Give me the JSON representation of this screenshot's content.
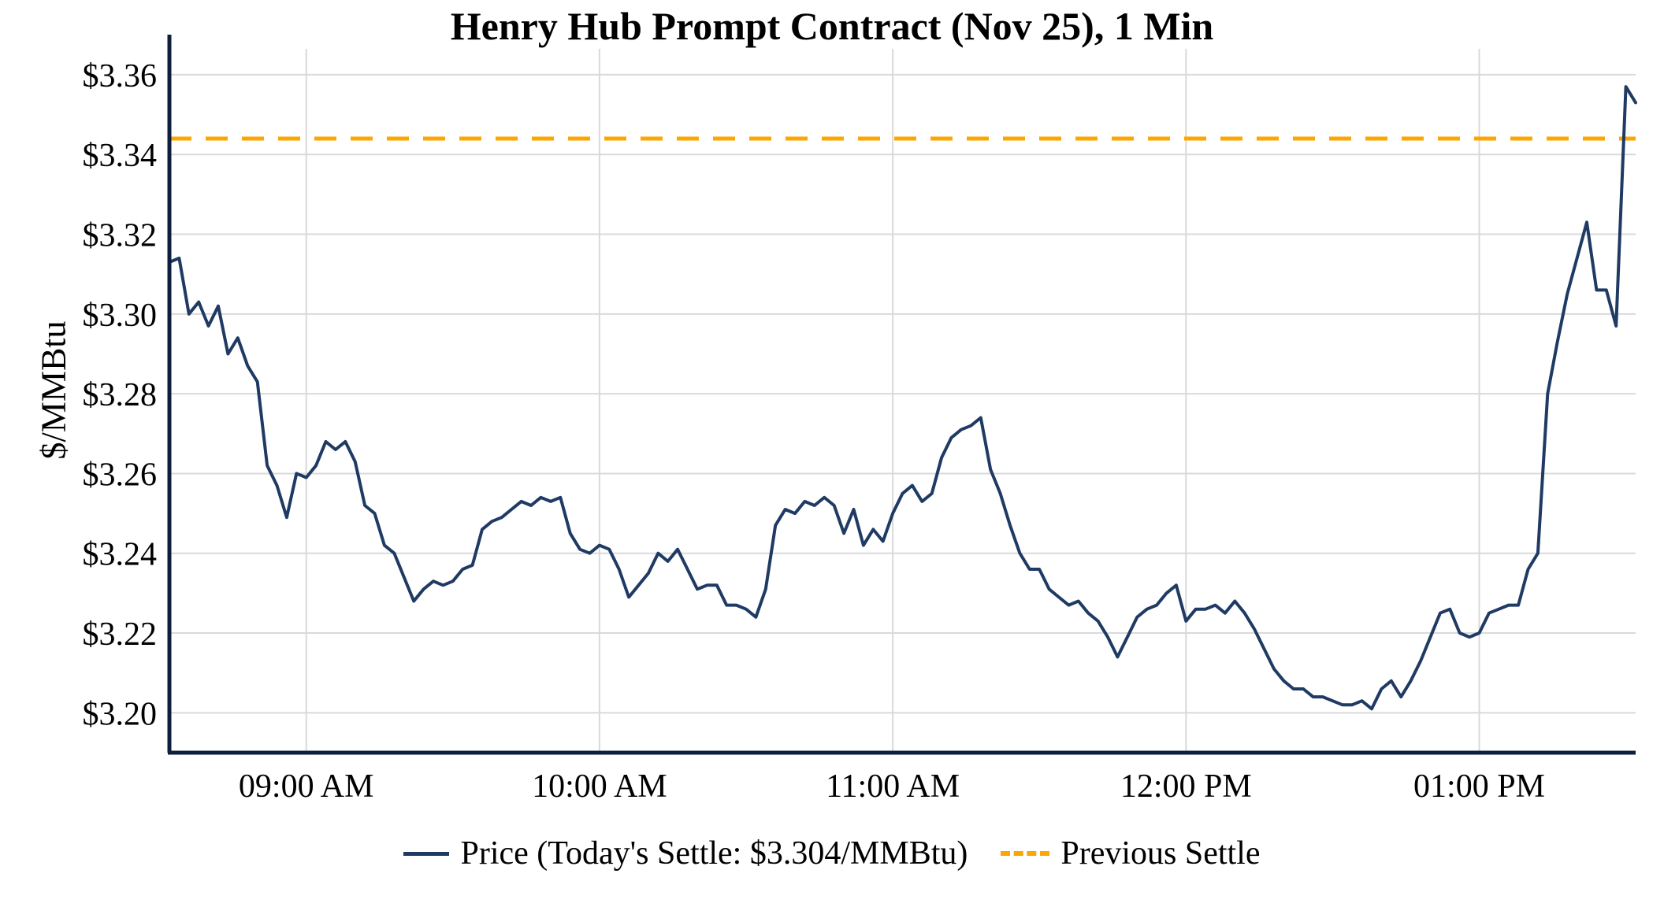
{
  "chart_data": {
    "type": "line",
    "title": "Henry Hub Prompt Contract (Nov 25), 1 Min",
    "ylabel": "$/MMBtu",
    "xlabel": "",
    "grid": true,
    "legend_position": "bottom",
    "xlim_minutes": [
      0,
      300
    ],
    "ylim": [
      3.19,
      3.3665
    ],
    "y_ticks": [
      {
        "value": 3.2,
        "label": "$3.20"
      },
      {
        "value": 3.22,
        "label": "$3.22"
      },
      {
        "value": 3.24,
        "label": "$3.24"
      },
      {
        "value": 3.26,
        "label": "$3.26"
      },
      {
        "value": 3.28,
        "label": "$3.28"
      },
      {
        "value": 3.3,
        "label": "$3.30"
      },
      {
        "value": 3.32,
        "label": "$3.32"
      },
      {
        "value": 3.34,
        "label": "$3.34"
      },
      {
        "value": 3.36,
        "label": "$3.36"
      }
    ],
    "x_ticks": [
      {
        "minute": 28,
        "label": "09:00 AM"
      },
      {
        "minute": 88,
        "label": "10:00 AM"
      },
      {
        "minute": 148,
        "label": "11:00 AM"
      },
      {
        "minute": 208,
        "label": "12:00 PM"
      },
      {
        "minute": 268,
        "label": "01:00 PM"
      }
    ],
    "series": [
      {
        "name": "Price (Today's Settle: $3.304/MMBtu)",
        "color": "#1f3a63",
        "start_minute": 0,
        "interval_minutes": 2,
        "values": [
          3.313,
          3.314,
          3.3,
          3.303,
          3.297,
          3.302,
          3.29,
          3.294,
          3.287,
          3.283,
          3.262,
          3.257,
          3.249,
          3.26,
          3.259,
          3.262,
          3.268,
          3.266,
          3.268,
          3.263,
          3.252,
          3.25,
          3.242,
          3.24,
          3.234,
          3.228,
          3.231,
          3.233,
          3.232,
          3.233,
          3.236,
          3.237,
          3.246,
          3.248,
          3.249,
          3.251,
          3.253,
          3.252,
          3.254,
          3.253,
          3.254,
          3.245,
          3.241,
          3.24,
          3.242,
          3.241,
          3.236,
          3.229,
          3.232,
          3.235,
          3.24,
          3.238,
          3.241,
          3.236,
          3.231,
          3.232,
          3.232,
          3.227,
          3.227,
          3.226,
          3.224,
          3.231,
          3.247,
          3.251,
          3.25,
          3.253,
          3.252,
          3.254,
          3.252,
          3.245,
          3.251,
          3.242,
          3.246,
          3.243,
          3.25,
          3.255,
          3.257,
          3.253,
          3.255,
          3.264,
          3.269,
          3.271,
          3.272,
          3.274,
          3.261,
          3.255,
          3.247,
          3.24,
          3.236,
          3.236,
          3.231,
          3.229,
          3.227,
          3.228,
          3.225,
          3.223,
          3.219,
          3.214,
          3.219,
          3.224,
          3.226,
          3.227,
          3.23,
          3.232,
          3.223,
          3.226,
          3.226,
          3.227,
          3.225,
          3.228,
          3.225,
          3.221,
          3.216,
          3.211,
          3.208,
          3.206,
          3.206,
          3.204,
          3.204,
          3.203,
          3.202,
          3.202,
          3.203,
          3.201,
          3.206,
          3.208,
          3.204,
          3.208,
          3.213,
          3.219,
          3.225,
          3.226,
          3.22,
          3.219,
          3.22,
          3.225,
          3.226,
          3.227,
          3.227,
          3.236,
          3.24,
          3.28,
          3.293,
          3.305,
          3.314,
          3.323,
          3.306,
          3.306,
          3.297,
          3.357,
          3.353
        ]
      }
    ],
    "previous_settle": {
      "name": "Previous Settle",
      "value": 3.344,
      "color": "#FFA500",
      "style": "dashed"
    },
    "today_settle_text": "$3.304/MMBtu",
    "colors": {
      "grid": "#d9d9d9",
      "axis": "#0d1f3c",
      "text": "#000000"
    }
  },
  "legend": {
    "price_label": "Price (Today's Settle: $3.304/MMBtu)",
    "previous_settle_label": "Previous Settle"
  }
}
